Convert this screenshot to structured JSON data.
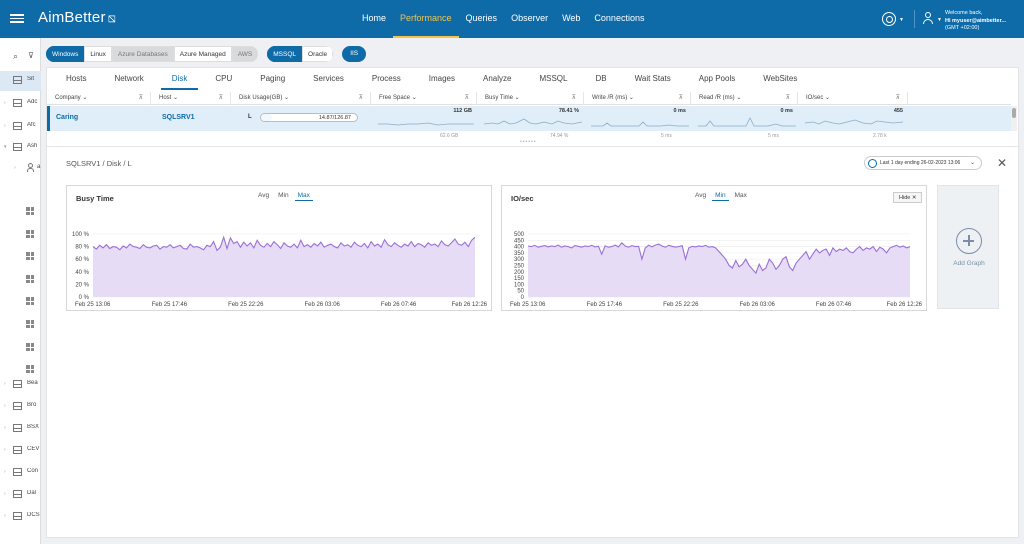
{
  "app": {
    "name": "AimBetter",
    "welcome": "Welcome back,",
    "user": "Hi myuser@aimbetter...",
    "tz": "(GMT +02:00)"
  },
  "nav": [
    "Home",
    "Performance",
    "Queries",
    "Observer",
    "Web",
    "Connections"
  ],
  "nav_active": 1,
  "sidebar": {
    "rows": [
      {
        "label": "Sit",
        "kind": "grid",
        "sel": true
      },
      {
        "label": "Adc",
        "kind": "grid"
      },
      {
        "label": "Afc",
        "kind": "grid"
      },
      {
        "label": "Ash",
        "kind": "grid",
        "open": true
      },
      {
        "label": "a",
        "kind": "person"
      },
      {
        "label": "",
        "kind": "win"
      },
      {
        "label": "",
        "kind": "win"
      },
      {
        "label": "",
        "kind": "win"
      },
      {
        "label": "",
        "kind": "win"
      },
      {
        "label": "",
        "kind": "win"
      },
      {
        "label": "",
        "kind": "win"
      },
      {
        "label": "",
        "kind": "win"
      },
      {
        "label": "",
        "kind": "win"
      },
      {
        "label": "Bea",
        "kind": "grid"
      },
      {
        "label": "Bro",
        "kind": "grid"
      },
      {
        "label": "BSX",
        "kind": "grid"
      },
      {
        "label": "CEV",
        "kind": "grid"
      },
      {
        "label": "Con",
        "kind": "grid"
      },
      {
        "label": "Dal",
        "kind": "grid"
      },
      {
        "label": "DCS",
        "kind": "grid"
      }
    ]
  },
  "filters": {
    "os": [
      {
        "label": "Windows",
        "state": "on"
      },
      {
        "label": "Linux",
        "state": "off"
      },
      {
        "label": "Azure Databases",
        "state": "dis"
      },
      {
        "label": "Azure Managed",
        "state": "off"
      },
      {
        "label": "AWS",
        "state": "dis"
      }
    ],
    "db": [
      {
        "label": "MSSQL",
        "state": "on"
      },
      {
        "label": "Oracle",
        "state": "off"
      }
    ],
    "iis": "IIS"
  },
  "tabs": [
    "Hosts",
    "Network",
    "Disk",
    "CPU",
    "Paging",
    "Services",
    "Process",
    "Images",
    "Analyze",
    "MSSQL",
    "DB",
    "Wait Stats",
    "App Pools",
    "WebSites"
  ],
  "tab_active": 2,
  "table": {
    "headers": [
      "Company",
      "Host",
      "Disk Usage(GB)",
      "Free Space",
      "Busy Time",
      "Write /R (ms)",
      "Read /R (ms)",
      "IO/sec"
    ],
    "row": {
      "company": "Caring",
      "host": "SQLSRV1",
      "disk_letter": "L",
      "disk_usage": "14.87/126.87",
      "disk_fill": 0.117,
      "free_space": "112 GB",
      "busy_time": "78.41 %",
      "write": "0 ms",
      "read": "0 ms",
      "iosec": "455"
    },
    "row2": [
      "62.6 GB",
      "74.94 %",
      "5 ms",
      "5 ms",
      "2.78 k"
    ]
  },
  "detail": {
    "breadcrumb": "SQLSRV1 / Disk / L",
    "timerange": "Last 1 day ending 26-02-2023 13:06",
    "add_graph": "Add Graph",
    "hide": "Hide"
  },
  "chart_data": [
    {
      "type": "area",
      "title": "Busy Time",
      "modes": [
        "Avg",
        "Min",
        "Max"
      ],
      "mode_active": 2,
      "yticks": [
        "100 %",
        "80 %",
        "60 %",
        "40 %",
        "20 %",
        "0 %"
      ],
      "ylim": [
        0,
        100
      ],
      "xticks": [
        "Feb 25 13:06",
        "Feb 25 17:46",
        "Feb 25 22:26",
        "Feb 26 03:06",
        "Feb 26 07:46",
        "Feb 26 12:26"
      ],
      "color": "#9b6fd8",
      "fill": "#e7dcf6",
      "values": [
        80,
        76,
        82,
        78,
        83,
        77,
        80,
        79,
        75,
        81,
        78,
        84,
        80,
        79,
        77,
        83,
        79,
        78,
        81,
        82,
        76,
        80,
        79,
        83,
        78,
        80,
        82,
        77,
        76,
        84,
        79,
        80,
        78,
        75,
        82,
        80,
        88,
        74,
        79,
        95,
        77,
        94,
        85,
        88,
        79,
        87,
        81,
        86,
        78,
        90,
        82,
        79,
        85,
        80,
        88,
        83,
        77,
        86,
        81,
        79,
        84,
        78,
        90,
        80,
        83,
        79,
        85,
        81,
        87,
        79,
        82,
        84,
        80,
        78,
        86,
        81,
        83,
        79,
        87,
        82,
        80,
        85,
        78,
        88,
        81,
        84,
        79,
        91,
        83,
        80,
        86,
        82,
        79,
        84,
        81,
        88,
        80,
        85,
        83,
        79,
        86,
        82,
        84,
        80,
        89,
        83,
        81,
        86,
        92,
        84,
        82,
        87,
        80,
        90,
        95
      ]
    },
    {
      "type": "area",
      "title": "IO/sec",
      "modes": [
        "Avg",
        "Min",
        "Max"
      ],
      "mode_active": 1,
      "yticks": [
        "500",
        "450",
        "400",
        "350",
        "300",
        "250",
        "200",
        "150",
        "100",
        "50",
        "0"
      ],
      "ylim": [
        0,
        500
      ],
      "xticks": [
        "Feb 25 13:06",
        "Feb 25 17:46",
        "Feb 25 22:26",
        "Feb 26 03:06",
        "Feb 26 07:46",
        "Feb 26 12:26"
      ],
      "color": "#9b6fd8",
      "fill": "#e7dcf6",
      "values": [
        405,
        400,
        410,
        395,
        402,
        408,
        398,
        405,
        400,
        412,
        395,
        405,
        400,
        390,
        408,
        402,
        395,
        405,
        400,
        410,
        398,
        404,
        340,
        406,
        395,
        400,
        412,
        398,
        430,
        405,
        395,
        408,
        400,
        402,
        300,
        390,
        410,
        398,
        412,
        420,
        405,
        395,
        410,
        402,
        395,
        400,
        408,
        300,
        390,
        402,
        398,
        405,
        400,
        410,
        395,
        400,
        390,
        360,
        330,
        300,
        250,
        230,
        290,
        240,
        260,
        300,
        250,
        220,
        190,
        260,
        210,
        230,
        300,
        270,
        220,
        250,
        300,
        320,
        240,
        210,
        270,
        300,
        330,
        360,
        300,
        340,
        380,
        350,
        370,
        380,
        330,
        390,
        360,
        380,
        370,
        390,
        360,
        350,
        380,
        400,
        370,
        390,
        380,
        400,
        360,
        395,
        380,
        350,
        390,
        400,
        410,
        395,
        405,
        390,
        400
      ]
    }
  ]
}
